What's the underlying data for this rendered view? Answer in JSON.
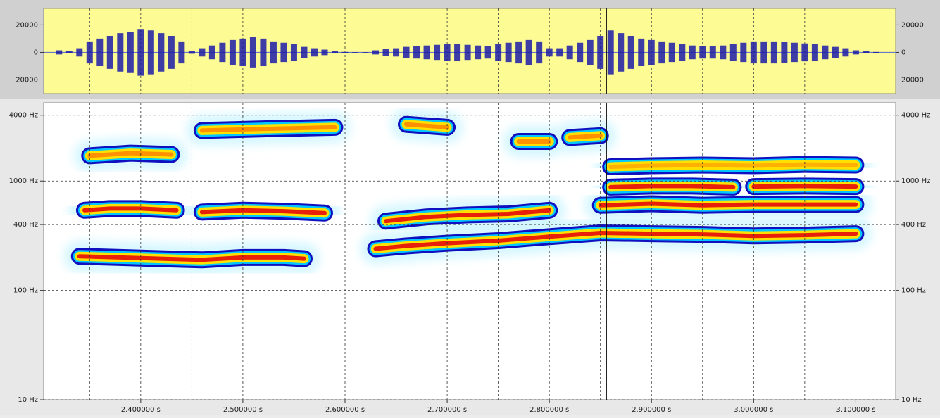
{
  "chart_data": [
    {
      "type": "waveform",
      "xlim": [
        2.305,
        3.139
      ],
      "ylim": [
        -30000,
        32000
      ],
      "yticks": [
        20000,
        0,
        {
          "value": -20000,
          "label": "20000"
        }
      ],
      "xgrid": [
        2.35,
        2.4,
        2.45,
        2.5,
        2.55,
        2.6,
        2.65,
        2.7,
        2.75,
        2.8,
        2.85,
        2.9,
        2.95,
        3.0,
        3.05,
        3.1
      ],
      "cursor": 2.856,
      "color": "#1c1ca8",
      "background": "#fdfb94",
      "x": [
        2.31,
        2.32,
        2.33,
        2.34,
        2.35,
        2.36,
        2.37,
        2.38,
        2.39,
        2.4,
        2.41,
        2.42,
        2.43,
        2.44,
        2.45,
        2.46,
        2.47,
        2.48,
        2.49,
        2.5,
        2.51,
        2.52,
        2.53,
        2.54,
        2.55,
        2.56,
        2.57,
        2.58,
        2.59,
        2.6,
        2.61,
        2.62,
        2.63,
        2.64,
        2.65,
        2.66,
        2.67,
        2.68,
        2.69,
        2.7,
        2.71,
        2.72,
        2.73,
        2.74,
        2.75,
        2.76,
        2.77,
        2.78,
        2.79,
        2.8,
        2.81,
        2.82,
        2.83,
        2.84,
        2.85,
        2.86,
        2.87,
        2.88,
        2.89,
        2.9,
        2.91,
        2.92,
        2.93,
        2.94,
        2.95,
        2.96,
        2.97,
        2.98,
        2.99,
        3.0,
        3.01,
        3.02,
        3.03,
        3.04,
        3.05,
        3.06,
        3.07,
        3.08,
        3.09,
        3.1,
        3.11,
        3.12,
        3.13
      ],
      "values": [
        0,
        1500,
        800,
        3000,
        8000,
        10000,
        12000,
        14000,
        15000,
        17000,
        16000,
        14000,
        12000,
        8000,
        1000,
        3000,
        5000,
        7000,
        9000,
        10000,
        11000,
        10000,
        8000,
        7000,
        6000,
        4000,
        3000,
        2000,
        800,
        300,
        200,
        200,
        1500,
        2500,
        3000,
        4000,
        4500,
        5000,
        5500,
        6000,
        6000,
        5500,
        5000,
        4500,
        6000,
        7000,
        8000,
        9000,
        8000,
        3000,
        3000,
        5000,
        7000,
        9000,
        12000,
        16000,
        14000,
        12000,
        10000,
        9000,
        8000,
        7000,
        6000,
        5000,
        4500,
        4500,
        5000,
        6000,
        7000,
        8000,
        8000,
        8000,
        7500,
        7000,
        6500,
        6000,
        5000,
        4000,
        3000,
        1500,
        800,
        300,
        0
      ]
    },
    {
      "type": "spectrogram",
      "xlim": [
        2.305,
        3.139
      ],
      "ylim": [
        10,
        5200
      ],
      "log_y": true,
      "yticks": [
        {
          "value": 4000,
          "label": "4000 Hz"
        },
        {
          "value": 1000,
          "label": "1000 Hz"
        },
        {
          "value": 400,
          "label": "400 Hz"
        },
        {
          "value": 100,
          "label": "100 Hz"
        },
        {
          "value": 10,
          "label": "10 Hz"
        }
      ],
      "xticks": [
        {
          "value": 2.4,
          "label": "2.400000 s"
        },
        {
          "value": 2.5,
          "label": "2.500000 s"
        },
        {
          "value": 2.6,
          "label": "2.600000 s"
        },
        {
          "value": 2.7,
          "label": "2.700000 s"
        },
        {
          "value": 2.8,
          "label": "2.800000 s"
        },
        {
          "value": 2.9,
          "label": "2.900000 s"
        },
        {
          "value": 3.0,
          "label": "3.000000 s"
        },
        {
          "value": 3.1,
          "label": "3.100000 s"
        }
      ],
      "xminor": [
        2.35,
        2.45,
        2.55,
        2.65,
        2.75,
        2.85,
        2.95,
        3.05
      ],
      "cursor": 2.856,
      "series": [
        {
          "color": "#e8200a",
          "x": [
            2.34,
            2.38,
            2.42,
            2.46,
            2.5,
            2.54,
            2.56,
            2.6,
            2.63,
            2.66,
            2.7,
            2.75,
            2.8,
            2.85,
            2.9,
            2.95,
            3.0,
            3.05,
            3.1
          ],
          "values": [
            205,
            200,
            195,
            190,
            200,
            200,
            195,
            null,
            240,
            255,
            270,
            285,
            310,
            335,
            330,
            325,
            315,
            320,
            330
          ]
        },
        {
          "color": "#e8200a",
          "x": [
            2.345,
            2.37,
            2.4,
            2.435,
            null,
            2.46,
            2.5,
            2.54,
            2.58
          ],
          "values": [
            540,
            560,
            560,
            540,
            null,
            520,
            540,
            530,
            510
          ]
        },
        {
          "color": "#e8200a",
          "x": [
            2.64,
            2.68,
            2.72,
            2.76,
            2.8,
            null,
            2.85,
            2.9,
            2.95,
            3.0,
            3.05,
            3.1
          ],
          "values": [
            430,
            470,
            490,
            500,
            540,
            null,
            600,
            620,
            600,
            610,
            610,
            610
          ]
        },
        {
          "color": "#e8200a",
          "x": [
            2.86,
            2.9,
            2.94,
            2.98,
            null,
            3.0,
            3.05,
            3.1
          ],
          "values": [
            880,
            900,
            900,
            880,
            null,
            890,
            900,
            890
          ]
        },
        {
          "color": "#ffb000",
          "x": [
            2.86,
            2.9,
            2.95,
            3.0,
            3.05,
            3.1
          ],
          "values": [
            1350,
            1380,
            1400,
            1380,
            1420,
            1400
          ]
        },
        {
          "color": "#ff9000",
          "x": [
            2.35,
            2.39,
            2.43,
            null,
            2.46,
            2.52,
            2.59,
            null,
            2.66,
            2.7,
            null,
            2.77,
            2.8,
            null,
            2.82,
            2.85
          ],
          "values": [
            1700,
            1800,
            1750,
            null,
            2900,
            3000,
            3100,
            null,
            3300,
            3100,
            null,
            2300,
            2300,
            null,
            2500,
            2600
          ]
        }
      ]
    }
  ]
}
